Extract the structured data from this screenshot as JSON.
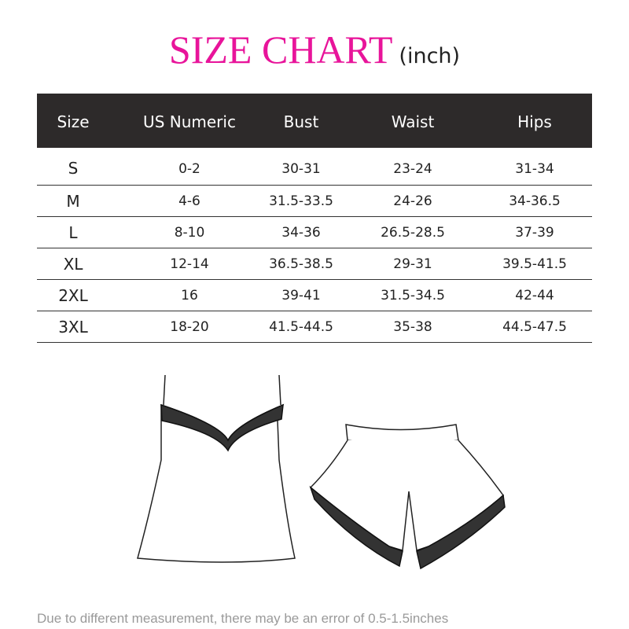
{
  "title": {
    "main": "SIZE CHART",
    "unit": "(inch)",
    "color": "#e8149a"
  },
  "table": {
    "headers": [
      "Size",
      "US Numeric",
      "Bust",
      "Waist",
      "Hips"
    ],
    "header_bg": "#2d2a2a",
    "rows": [
      [
        "S",
        "0-2",
        "30-31",
        "23-24",
        "31-34"
      ],
      [
        "M",
        "4-6",
        "31.5-33.5",
        "24-26",
        "34-36.5"
      ],
      [
        "L",
        "8-10",
        "34-36",
        "26.5-28.5",
        "37-39"
      ],
      [
        "XL",
        "12-14",
        "36.5-38.5",
        "29-31",
        "39.5-41.5"
      ],
      [
        "2XL",
        "16",
        "39-41",
        "31.5-34.5",
        "42-44"
      ],
      [
        "3XL",
        "18-20",
        "41.5-44.5",
        "35-38",
        "44.5-47.5"
      ]
    ]
  },
  "illustrations": [
    "camisole-top",
    "shorts"
  ],
  "note": "Due to different measurement,  there may be an error of 0.5-1.5inches"
}
